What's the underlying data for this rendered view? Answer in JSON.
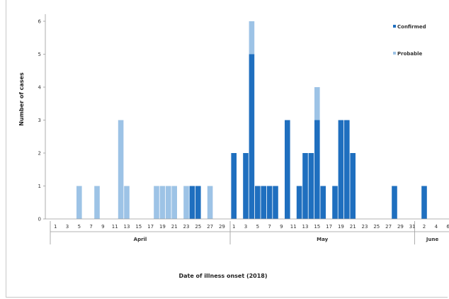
{
  "chart_data": {
    "type": "bar",
    "stacked": true,
    "xlabel": "Date of illness onset (2018)",
    "ylabel": "Number of cases",
    "ylim": [
      0,
      6
    ],
    "yticks": [
      "0",
      "1",
      "2",
      "3",
      "4",
      "5",
      "6"
    ],
    "x_tick_labels": [
      "1",
      "3",
      "5",
      "7",
      "9",
      "11",
      "13",
      "15",
      "17",
      "19",
      "21",
      "23",
      "25",
      "27",
      "29",
      "1",
      "3",
      "5",
      "7",
      "9",
      "11",
      "13",
      "15",
      "17",
      "19",
      "21",
      "23",
      "25",
      "27",
      "29",
      "31",
      "2",
      "4",
      "6"
    ],
    "month_groups": [
      {
        "label": "April",
        "start_day": 1,
        "end_day": 30
      },
      {
        "label": "May",
        "start_day": 31,
        "end_day": 61
      },
      {
        "label": "June",
        "start_day": 62,
        "end_day": 67
      }
    ],
    "legend": [
      "Confirmed",
      "Probable"
    ],
    "colors": {
      "Confirmed": "#1f6fbf",
      "Probable": "#9dc3e6"
    },
    "categories": [
      "Apr 5",
      "Apr 8",
      "Apr 12",
      "Apr 13",
      "Apr 18",
      "Apr 19",
      "Apr 20",
      "Apr 21",
      "Apr 23",
      "Apr 24",
      "Apr 25",
      "Apr 27",
      "May 1",
      "May 3",
      "May 4",
      "May 5",
      "May 6",
      "May 7",
      "May 8",
      "May 10",
      "May 12",
      "May 13",
      "May 14",
      "May 15",
      "May 16",
      "May 18",
      "May 19",
      "May 20",
      "May 21",
      "May 28",
      "Jun 2"
    ],
    "series": [
      {
        "name": "Confirmed",
        "values": [
          0,
          0,
          0,
          0,
          0,
          0,
          0,
          0,
          0,
          1,
          1,
          0,
          2,
          2,
          5,
          1,
          1,
          1,
          1,
          3,
          1,
          2,
          2,
          3,
          1,
          1,
          3,
          3,
          2,
          1,
          1
        ]
      },
      {
        "name": "Probable",
        "values": [
          1,
          1,
          3,
          1,
          1,
          1,
          1,
          1,
          1,
          0,
          0,
          1,
          0,
          0,
          1,
          0,
          0,
          0,
          0,
          0,
          0,
          0,
          0,
          1,
          0,
          0,
          0,
          0,
          0,
          0,
          0
        ]
      }
    ]
  }
}
